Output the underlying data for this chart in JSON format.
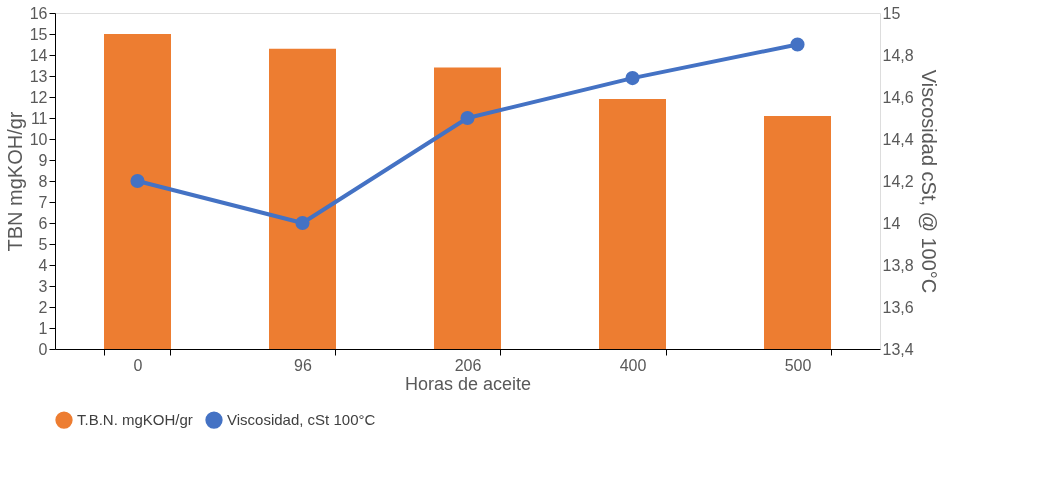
{
  "chart_data": {
    "type": "bar",
    "xlabel": "Horas de aceite",
    "ylabel": "TBN mgKOH/gr",
    "y2label": "Viscosidad cSt, @ 100°C",
    "categories": [
      "0",
      "96",
      "206",
      "400",
      "500"
    ],
    "series": [
      {
        "name": "T.B.N. mgKOH/gr",
        "type": "bar",
        "color": "#ed7d31",
        "values": [
          15,
          14.3,
          13.4,
          11.9,
          11.1
        ]
      },
      {
        "name": "Viscosidad, cSt 100°C",
        "type": "line",
        "axis": "y2",
        "color": "#4472c4",
        "marker": "circle",
        "values": [
          14.2,
          14.0,
          14.5,
          14.69,
          14.85
        ]
      }
    ],
    "ylim": [
      0,
      16
    ],
    "yticks": [
      0,
      1,
      2,
      3,
      4,
      5,
      6,
      7,
      8,
      9,
      10,
      11,
      12,
      13,
      14,
      15,
      16
    ],
    "y2lim": [
      13.4,
      15
    ],
    "y2ticks": [
      {
        "value": 13.4,
        "label": "13,4"
      },
      {
        "value": 13.6,
        "label": "13,6"
      },
      {
        "value": 13.8,
        "label": "13,8"
      },
      {
        "value": 14,
        "label": "14"
      },
      {
        "value": 14.2,
        "label": "14,2"
      },
      {
        "value": 14.4,
        "label": "14,4"
      },
      {
        "value": 14.6,
        "label": "14,6"
      },
      {
        "value": 14.8,
        "label": "14,8"
      },
      {
        "value": 15,
        "label": "15"
      }
    ],
    "grid": false,
    "legend": "bottom"
  }
}
